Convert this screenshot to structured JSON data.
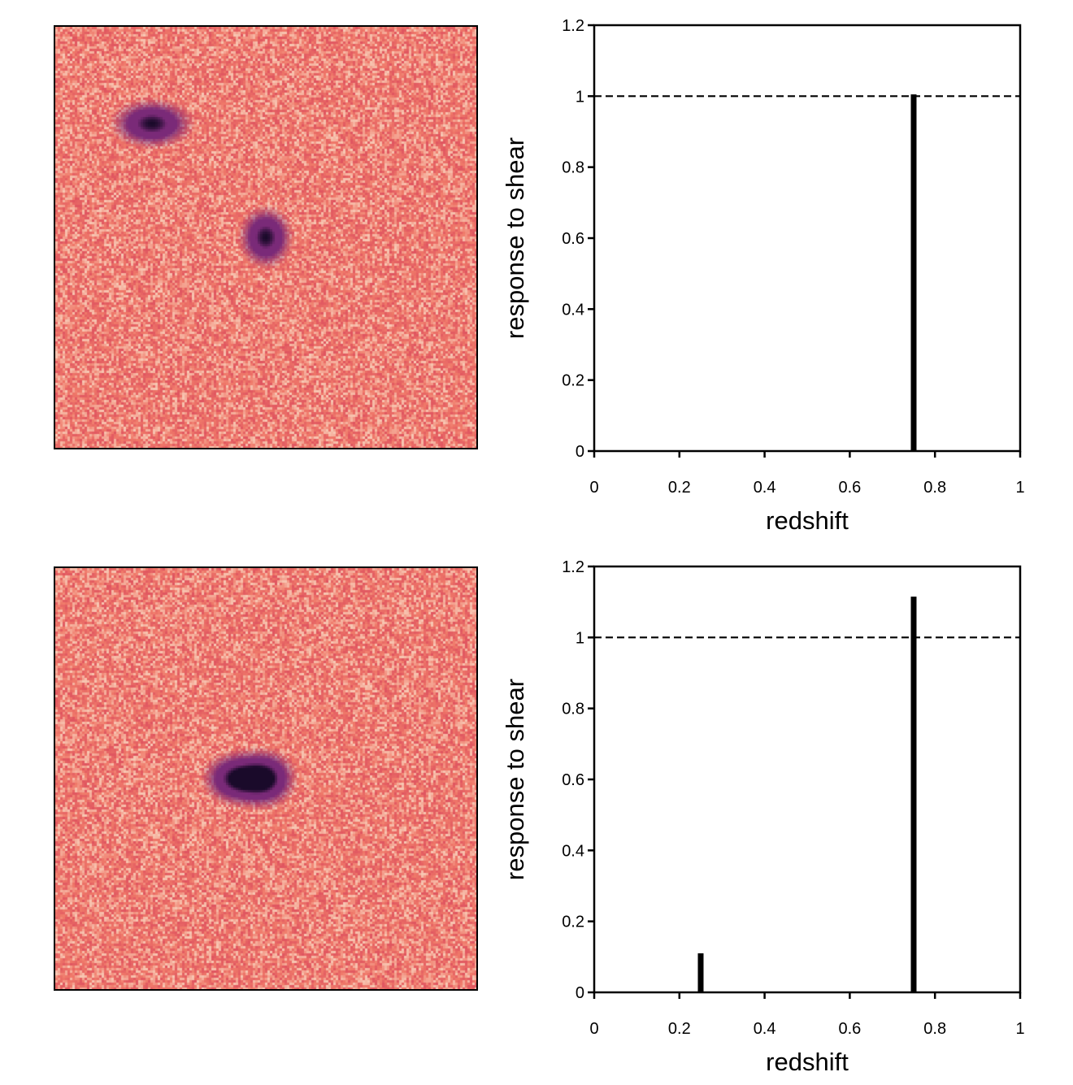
{
  "chart_data": [
    {
      "type": "bar",
      "panel": "top",
      "xlabel": "redshift",
      "ylabel": "response to shear",
      "xlim": [
        0,
        1
      ],
      "ylim": [
        0,
        1.2
      ],
      "xticks": [
        "0",
        "0.2",
        "0.4",
        "0.6",
        "0.8",
        "1"
      ],
      "yticks": [
        "0",
        "0.2",
        "0.4",
        "0.6",
        "0.8",
        "1",
        "1.2"
      ],
      "reference_line": {
        "y": 1,
        "style": "dashed"
      },
      "bars": [
        {
          "x": 0.75,
          "y": 1.005
        }
      ],
      "image": {
        "sources": [
          {
            "x": 0.23,
            "y": 0.23,
            "sx": 0.05,
            "sy": 0.03,
            "peak": 1.0
          },
          {
            "x": 0.5,
            "y": 0.5,
            "sx": 0.033,
            "sy": 0.038,
            "peak": 1.0
          }
        ]
      }
    },
    {
      "type": "bar",
      "panel": "bottom",
      "xlabel": "redshift",
      "ylabel": "response to shear",
      "xlim": [
        0,
        1
      ],
      "ylim": [
        0,
        1.2
      ],
      "xticks": [
        "0",
        "0.2",
        "0.4",
        "0.6",
        "0.8",
        "1"
      ],
      "yticks": [
        "0",
        "0.2",
        "0.4",
        "0.6",
        "0.8",
        "1",
        "1.2"
      ],
      "reference_line": {
        "y": 1,
        "style": "dashed"
      },
      "bars": [
        {
          "x": 0.25,
          "y": 0.11
        },
        {
          "x": 0.75,
          "y": 1.115
        }
      ],
      "image": {
        "sources": [
          {
            "x": 0.43,
            "y": 0.5,
            "sx": 0.042,
            "sy": 0.033,
            "peak": 1.0
          },
          {
            "x": 0.5,
            "y": 0.5,
            "sx": 0.038,
            "sy": 0.036,
            "peak": 1.0
          }
        ]
      }
    }
  ],
  "colors": {
    "background_noise": "#f07a6a",
    "noise_light": "#f8c8b4",
    "noise_dark": "#e05560",
    "source_mid": "#7a2a78",
    "source_core": "#1a0a2a",
    "bar": "#000000",
    "axis": "#000000"
  }
}
